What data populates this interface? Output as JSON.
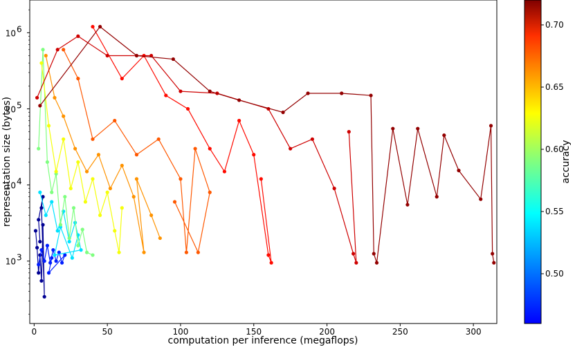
{
  "chart_data": {
    "type": "scatter",
    "xlabel": "computation per inference (megaflops)",
    "ylabel": "representation size (bytes)",
    "xlim": [
      -3,
      316
    ],
    "ylim_log10": [
      2.18,
      6.43
    ],
    "x_ticks": [
      {
        "v": 0,
        "label": "0"
      },
      {
        "v": 50,
        "label": "50"
      },
      {
        "v": 100,
        "label": "100"
      },
      {
        "v": 150,
        "label": "150"
      },
      {
        "v": 200,
        "label": "200"
      },
      {
        "v": 250,
        "label": "250"
      },
      {
        "v": 300,
        "label": "300"
      }
    ],
    "y_ticks": [
      {
        "exp": 3,
        "label": "10",
        "sup": "3"
      },
      {
        "exp": 4,
        "label": "10",
        "sup": "4"
      },
      {
        "exp": 5,
        "label": "10",
        "sup": "5"
      },
      {
        "exp": 6,
        "label": "10",
        "sup": "6"
      }
    ],
    "colorbar": {
      "label": "accuracy",
      "min": 0.46,
      "max": 0.72,
      "colormap": "jet",
      "ticks": [
        {
          "v": 0.5,
          "label": "0.50"
        },
        {
          "v": 0.55,
          "label": "0.55"
        },
        {
          "v": 0.6,
          "label": "0.60"
        },
        {
          "v": 0.65,
          "label": "0.65"
        },
        {
          "v": 0.7,
          "label": "0.70"
        }
      ]
    },
    "series": [
      {
        "accuracy": 0.465,
        "points": [
          [
            1,
            2500
          ],
          [
            2,
            1500
          ],
          [
            3,
            700
          ],
          [
            4,
            1200
          ],
          [
            5,
            550
          ],
          [
            6,
            3000
          ],
          [
            7,
            340
          ],
          [
            5,
            5000
          ],
          [
            6,
            7000
          ],
          [
            3,
            3500
          ],
          [
            4,
            1800
          ]
        ]
      },
      {
        "accuracy": 0.5,
        "points": [
          [
            3,
            900
          ],
          [
            5,
            1400
          ],
          [
            7,
            1000
          ],
          [
            9,
            1600
          ],
          [
            11,
            950
          ],
          [
            13,
            1400
          ],
          [
            15,
            1000
          ],
          [
            17,
            1300
          ],
          [
            19,
            950
          ],
          [
            21,
            1200
          ],
          [
            10,
            700
          ],
          [
            12,
            1100
          ]
        ]
      },
      {
        "accuracy": 0.55,
        "points": [
          [
            4,
            8000
          ],
          [
            8,
            4000
          ],
          [
            12,
            6000
          ],
          [
            16,
            2500
          ],
          [
            20,
            4500
          ],
          [
            24,
            1800
          ],
          [
            28,
            3200
          ],
          [
            32,
            1400
          ],
          [
            14,
            1200
          ],
          [
            18,
            2800
          ],
          [
            26,
            1100
          ],
          [
            30,
            2200
          ]
        ]
      },
      {
        "accuracy": 0.59,
        "points": [
          [
            3,
            30000
          ],
          [
            6,
            600000
          ],
          [
            9,
            20000
          ],
          [
            12,
            8000
          ],
          [
            15,
            14000
          ],
          [
            18,
            3000
          ],
          [
            21,
            7000
          ],
          [
            24,
            2000
          ],
          [
            27,
            5000
          ],
          [
            30,
            1600
          ],
          [
            33,
            2600
          ],
          [
            36,
            1300
          ],
          [
            40,
            1200
          ]
        ]
      },
      {
        "accuracy": 0.62,
        "points": [
          [
            5,
            400000
          ],
          [
            10,
            60000
          ],
          [
            15,
            15000
          ],
          [
            20,
            40000
          ],
          [
            25,
            9000
          ],
          [
            30,
            20000
          ],
          [
            35,
            6000
          ],
          [
            40,
            12000
          ],
          [
            45,
            4000
          ],
          [
            50,
            8000
          ],
          [
            55,
            2500
          ],
          [
            58,
            1300
          ],
          [
            60,
            5000
          ]
        ]
      },
      {
        "accuracy": 0.65,
        "points": [
          [
            8,
            500000
          ],
          [
            14,
            140000
          ],
          [
            20,
            80000
          ],
          [
            28,
            30000
          ],
          [
            36,
            15000
          ],
          [
            44,
            25000
          ],
          [
            52,
            9000
          ],
          [
            60,
            18000
          ],
          [
            68,
            7000
          ],
          [
            75,
            1300
          ],
          [
            70,
            12000
          ],
          [
            80,
            4000
          ],
          [
            86,
            2000
          ]
        ]
      },
      {
        "accuracy": 0.665,
        "points": [
          [
            20,
            600000
          ],
          [
            30,
            250000
          ],
          [
            40,
            40000
          ],
          [
            55,
            70000
          ],
          [
            70,
            25000
          ],
          [
            85,
            40000
          ],
          [
            100,
            12000
          ],
          [
            104,
            1300
          ],
          [
            110,
            30000
          ],
          [
            120,
            8000
          ],
          [
            112,
            1300
          ],
          [
            96,
            6000
          ]
        ]
      },
      {
        "accuracy": 0.685,
        "points": [
          [
            40,
            1200000
          ],
          [
            60,
            250000
          ],
          [
            75,
            500000
          ],
          [
            90,
            150000
          ],
          [
            105,
            100000
          ],
          [
            120,
            30000
          ],
          [
            130,
            15000
          ],
          [
            140,
            70000
          ],
          [
            150,
            25000
          ],
          [
            160,
            1200
          ],
          [
            162,
            950
          ],
          [
            155,
            12000
          ]
        ]
      },
      {
        "accuracy": 0.7,
        "points": [
          [
            2,
            140000
          ],
          [
            16,
            600000
          ],
          [
            30,
            900000
          ],
          [
            50,
            500000
          ],
          [
            80,
            500000
          ],
          [
            100,
            170000
          ],
          [
            125,
            160000
          ],
          [
            160,
            100000
          ],
          [
            175,
            30000
          ],
          [
            190,
            40000
          ],
          [
            205,
            9000
          ],
          [
            218,
            1250
          ],
          [
            220,
            950
          ],
          [
            215,
            50000
          ]
        ]
      },
      {
        "accuracy": 0.715,
        "points": [
          [
            4,
            110000
          ],
          [
            45,
            1200000
          ],
          [
            70,
            500000
          ],
          [
            95,
            450000
          ],
          [
            120,
            170000
          ],
          [
            140,
            130000
          ],
          [
            170,
            90000
          ],
          [
            187,
            160000
          ],
          [
            210,
            160000
          ],
          [
            230,
            150000
          ],
          [
            232,
            1250
          ],
          [
            234,
            950
          ],
          [
            245,
            55000
          ],
          [
            255,
            5500
          ],
          [
            262,
            55000
          ],
          [
            275,
            7000
          ],
          [
            280,
            45000
          ],
          [
            290,
            15500
          ],
          [
            305,
            6500
          ],
          [
            312,
            60000
          ],
          [
            313,
            1250
          ],
          [
            314,
            950
          ]
        ]
      }
    ]
  }
}
